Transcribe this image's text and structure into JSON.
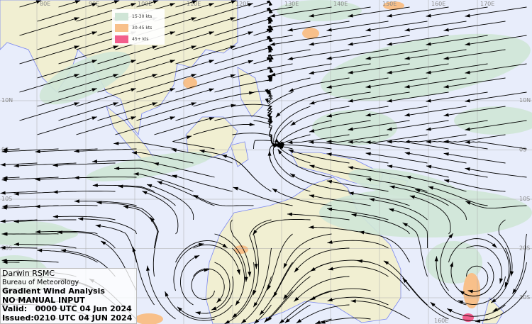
{
  "map": {
    "lon_labels": [
      "80E",
      "90E",
      "100E",
      "110E",
      "120E",
      "130E",
      "140E",
      "150E",
      "160E",
      "170E"
    ],
    "lat_labels": [
      "10N",
      "0S",
      "10S",
      "20S",
      "30S"
    ],
    "bottom_lon_label": "160E",
    "colors": {
      "ocean": "#e8edfb",
      "land": "#f1efd2",
      "coast": "#7a86f0",
      "kts15_30": "#cfe5d6",
      "kts30_45": "#f8c08a",
      "kts45": "#f25e8c",
      "streamline": "#000000"
    }
  },
  "legend": {
    "items": [
      {
        "label": "15-30 kts",
        "color": "#cfe5d6"
      },
      {
        "label": "30-45 kts",
        "color": "#f8c08a"
      },
      {
        "label": "45+ kts",
        "color": "#f25e8c"
      }
    ]
  },
  "info": {
    "center": "Darwin RSMC",
    "agency": "Bureau of Meteorology",
    "product": "Gradient Wind Analysis",
    "note": "NO MANUAL INPUT",
    "valid": "Valid:   0000 UTC 04 Jun 2024",
    "issued": "Issued:0210 UTC 04 JUN 2024"
  }
}
